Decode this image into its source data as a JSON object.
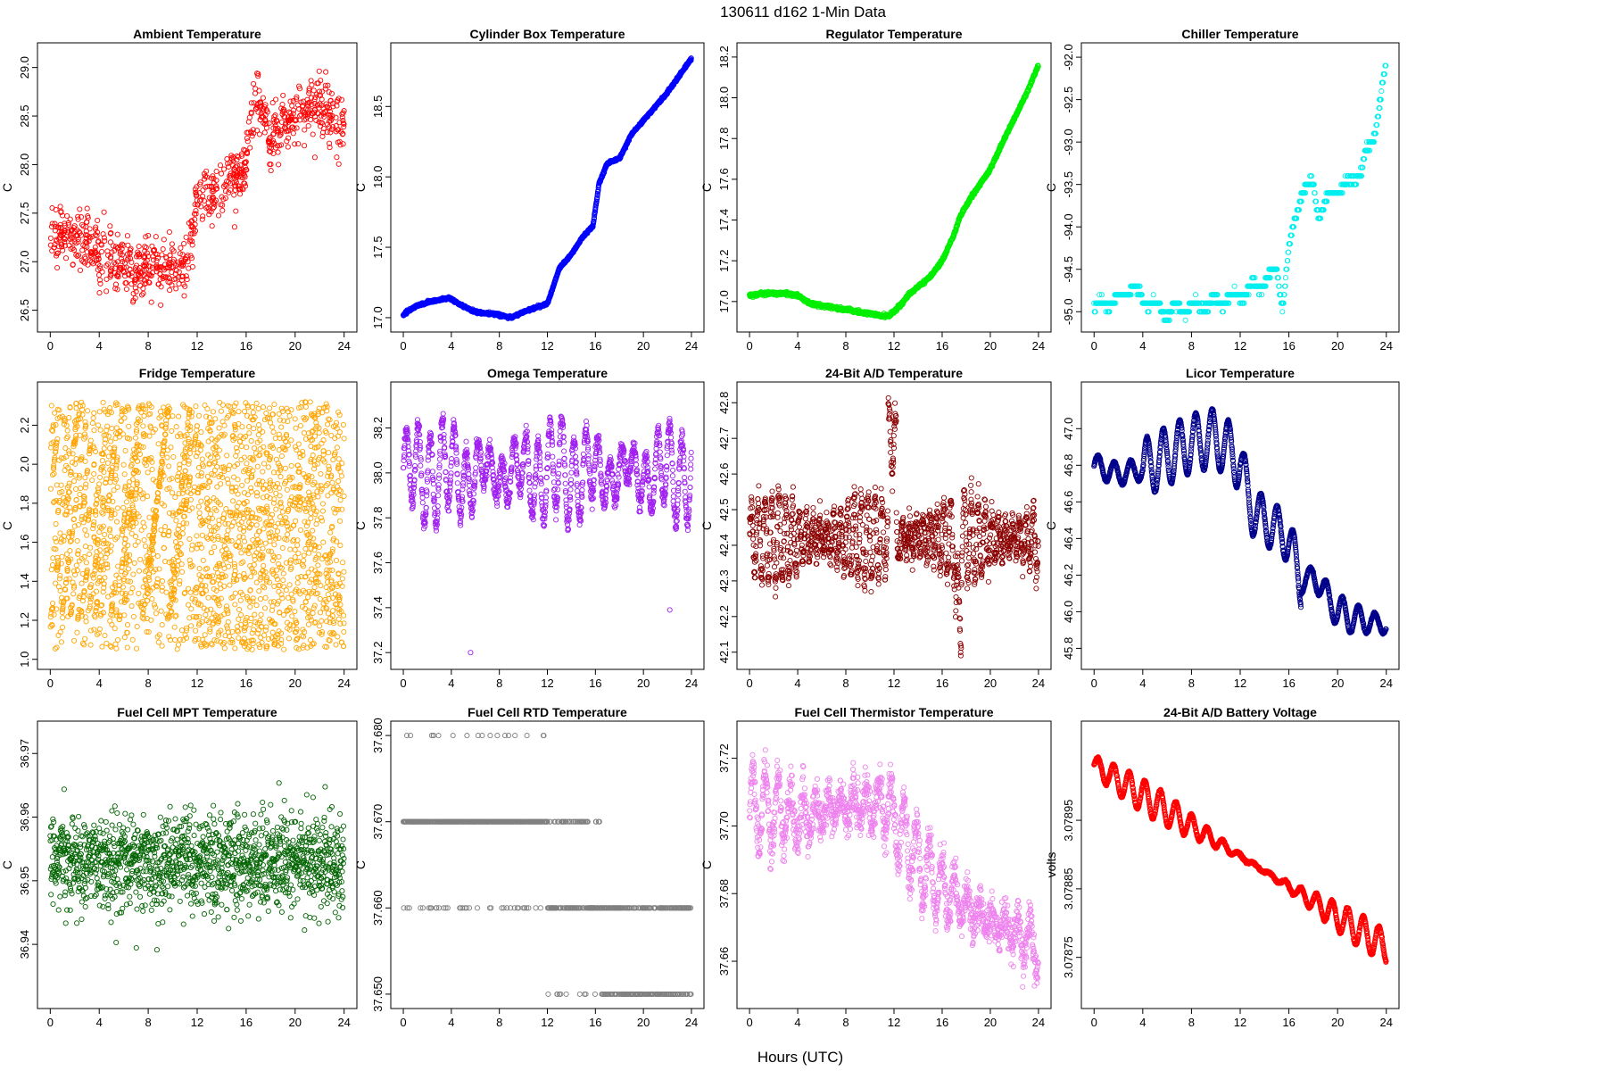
{
  "figure": {
    "suptitle": "130611   d162   1-Min Data",
    "xlabel": "Hours (UTC)"
  },
  "chart_data": [
    {
      "type": "scatter",
      "title": "Ambient Temperature",
      "ylabel": "C",
      "color": "#ff0000",
      "xlim": [
        0,
        24
      ],
      "xticks": [
        0,
        4,
        8,
        12,
        16,
        20,
        24
      ],
      "ylim": [
        26.38,
        29.15
      ],
      "yticks": [
        "26.5",
        "27.0",
        "27.5",
        "28.0",
        "28.5",
        "29.0"
      ],
      "model": "ambient",
      "noise": 0.14,
      "seed": 1
    },
    {
      "type": "scatter",
      "title": "Cylinder Box Temperature",
      "ylabel": "C",
      "color": "#0000ff",
      "xlim": [
        0,
        24
      ],
      "xticks": [
        0,
        4,
        8,
        12,
        16,
        20,
        24
      ],
      "ylim": [
        16.97,
        18.88
      ],
      "yticks": [
        "17.0",
        "17.5",
        "18.0",
        "18.5"
      ],
      "model": "cylinder",
      "noise": 0.004,
      "seed": 2
    },
    {
      "type": "scatter",
      "title": "Regulator Temperature",
      "ylabel": "C",
      "color": "#00ee00",
      "xlim": [
        0,
        24
      ],
      "xticks": [
        0,
        4,
        8,
        12,
        16,
        20,
        24
      ],
      "ylim": [
        16.9,
        18.22
      ],
      "yticks": [
        "17.0",
        "17.2",
        "17.4",
        "17.6",
        "17.8",
        "18.0",
        "18.2"
      ],
      "model": "regulator",
      "noise": 0.004,
      "seed": 3
    },
    {
      "type": "scatter",
      "title": "Chiller Temperature",
      "ylabel": "C",
      "color": "#00eeee",
      "xlim": [
        0,
        24
      ],
      "xticks": [
        0,
        4,
        8,
        12,
        16,
        20,
        24
      ],
      "ylim": [
        -95.12,
        -91.95
      ],
      "yticks": [
        "-95.0",
        "-94.5",
        "-94.0",
        "-93.5",
        "-93.0",
        "-92.5",
        "-92.0"
      ],
      "model": "chiller",
      "noise": 0,
      "seed": 4
    },
    {
      "type": "scatter",
      "title": "Fridge Temperature",
      "ylabel": "C",
      "color": "#ffa500",
      "xlim": [
        0,
        24
      ],
      "xticks": [
        0,
        4,
        8,
        12,
        16,
        20,
        24
      ],
      "ylim": [
        1.0,
        2.37
      ],
      "yticks": [
        "1.0",
        "1.2",
        "1.4",
        "1.6",
        "1.8",
        "2.0",
        "2.2"
      ],
      "model": "fridge",
      "noise": 0,
      "seed": 5
    },
    {
      "type": "scatter",
      "title": "Omega Temperature",
      "ylabel": "C",
      "color": "#a020f0",
      "xlim": [
        0,
        24
      ],
      "xticks": [
        0,
        4,
        8,
        12,
        16,
        20,
        24
      ],
      "ylim": [
        37.17,
        38.36
      ],
      "yticks": [
        "37.2",
        "37.4",
        "37.6",
        "37.8",
        "38.0",
        "38.2"
      ],
      "model": "omega",
      "noise": 0.02,
      "seed": 6
    },
    {
      "type": "scatter",
      "title": "24-Bit A/D Temperature",
      "ylabel": "C",
      "color": "#8b0000",
      "xlim": [
        0,
        24
      ],
      "xticks": [
        0,
        4,
        8,
        12,
        16,
        20,
        24
      ],
      "ylim": [
        42.08,
        42.83
      ],
      "yticks": [
        "42.1",
        "42.2",
        "42.3",
        "42.4",
        "42.5",
        "42.6",
        "42.7",
        "42.8"
      ],
      "model": "adtemp",
      "noise": 0.02,
      "seed": 7
    },
    {
      "type": "scatter",
      "title": "Licor Temperature",
      "ylabel": "C",
      "color": "#00008b",
      "xlim": [
        0,
        24
      ],
      "xticks": [
        0,
        4,
        8,
        12,
        16,
        20,
        24
      ],
      "ylim": [
        45.74,
        47.2
      ],
      "yticks": [
        "45.8",
        "46.0",
        "46.2",
        "46.4",
        "46.6",
        "46.8",
        "47.0"
      ],
      "model": "licor",
      "noise": 0.003,
      "seed": 8
    },
    {
      "type": "scatter",
      "title": "Fuel Cell MPT Temperature",
      "ylabel": "C",
      "color": "#006400",
      "xlim": [
        0,
        24
      ],
      "xticks": [
        0,
        4,
        8,
        12,
        16,
        20,
        24
      ],
      "ylim": [
        36.9315,
        36.9735
      ],
      "yticks": [
        "36.94",
        "36.95",
        "36.96",
        "36.97"
      ],
      "model": "mpt",
      "noise": 0.0038,
      "seed": 9
    },
    {
      "type": "scatter",
      "title": "Fuel Cell RTD Temperature",
      "ylabel": "C",
      "color": "#808080",
      "xlim": [
        0,
        24
      ],
      "xticks": [
        0,
        4,
        8,
        12,
        16,
        20,
        24
      ],
      "ylim": [
        37.6495,
        37.6805
      ],
      "yticks": [
        "37.650",
        "37.660",
        "37.670",
        "37.680"
      ],
      "model": "rtd",
      "noise": 0,
      "seed": 10
    },
    {
      "type": "scatter",
      "title": "Fuel Cell Thermistor Temperature",
      "ylabel": "C",
      "color": "#ee82ee",
      "xlim": [
        0,
        24
      ],
      "xticks": [
        0,
        4,
        8,
        12,
        16,
        20,
        24
      ],
      "ylim": [
        37.649,
        37.728
      ],
      "yticks": [
        "37.66",
        "37.68",
        "37.70",
        "37.72"
      ],
      "model": "thermistor",
      "noise": 0.003,
      "seed": 11
    },
    {
      "type": "scatter",
      "title": "24-Bit A/D Battery Voltage",
      "ylabel": "volts",
      "color": "#ff0000",
      "xlim": [
        0,
        24
      ],
      "xticks": [
        0,
        4,
        8,
        12,
        16,
        20,
        24
      ],
      "ylim": [
        3.07869,
        3.07908
      ],
      "yticks": [
        "3.07875",
        "3.07885",
        "3.07895"
      ],
      "model": "battery",
      "noise": 8e-07,
      "seed": 12
    }
  ]
}
